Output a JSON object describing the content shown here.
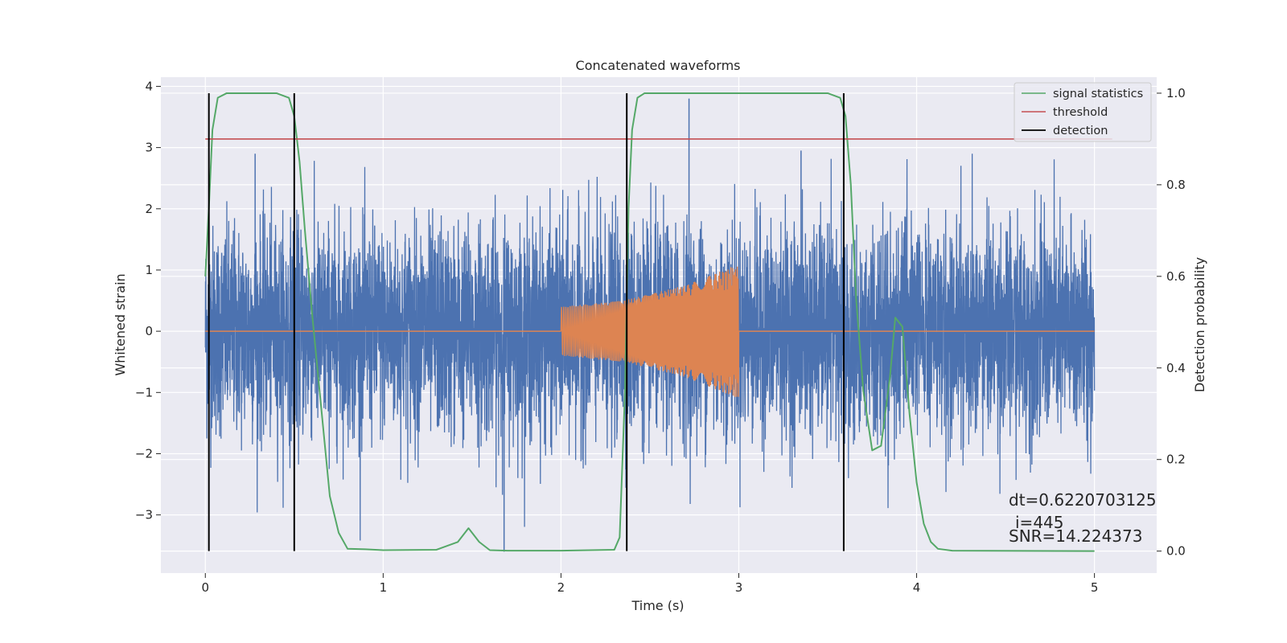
{
  "chart_data": {
    "type": "line",
    "title": "Concatenated waveforms",
    "xlabel": "Time (s)",
    "ylabel": "Whitened strain",
    "ylabel_right": "Detection probability",
    "xlim": [
      -0.25,
      5.35
    ],
    "ylim": [
      -3.95,
      4.15
    ],
    "ylim_right": [
      -0.048,
      1.035
    ],
    "x_ticks": [
      0,
      1,
      2,
      3,
      4,
      5
    ],
    "y_ticks": [
      -3,
      -2,
      -1,
      0,
      1,
      2,
      3,
      4
    ],
    "y_ticks_right": [
      0.0,
      0.2,
      0.4,
      0.6,
      0.8,
      1.0
    ],
    "x_tick_labels": [
      "0",
      "1",
      "2",
      "3",
      "4",
      "5"
    ],
    "y_tick_labels": [
      "−3",
      "−2",
      "−1",
      "0",
      "1",
      "2",
      "3",
      "4"
    ],
    "y_tick_labels_right": [
      "0.0",
      "0.2",
      "0.4",
      "0.6",
      "0.8",
      "1.0"
    ],
    "grid": true,
    "legend_position": "top-right",
    "colors": {
      "plot_background": "#eaeaf2",
      "grid": "#ffffff",
      "strain": "#4c72b0",
      "injection": "#dd8452",
      "signal_statistics": "#55a868",
      "threshold": "#c44e52",
      "detection": "#000000"
    },
    "series": [
      {
        "name": "",
        "kind": "noise",
        "axis": "left",
        "x_range": [
          0,
          5
        ],
        "envelope_upper": 2.9,
        "envelope_lower": -3.5,
        "peak": 3.8,
        "trough": -3.6,
        "color": "#4c72b0"
      },
      {
        "name": "",
        "kind": "chirp",
        "axis": "left",
        "x": [
          0,
          2,
          2.35,
          2.7,
          3,
          3.001,
          5
        ],
        "amplitude": [
          0,
          0.4,
          0.5,
          0.75,
          1.1,
          0,
          0
        ],
        "color": "#dd8452"
      },
      {
        "name": "signal statistics",
        "axis": "right",
        "color": "#55a868",
        "x": [
          0,
          0.02,
          0.04,
          0.07,
          0.12,
          0.2,
          0.4,
          0.47,
          0.5,
          0.53,
          0.56,
          0.6,
          0.65,
          0.7,
          0.75,
          0.8,
          0.9,
          1.0,
          1.3,
          1.42,
          1.48,
          1.54,
          1.6,
          1.7,
          2.0,
          2.3,
          2.33,
          2.36,
          2.38,
          2.4,
          2.43,
          2.47,
          2.55,
          3.0,
          3.5,
          3.57,
          3.6,
          3.63,
          3.66,
          3.7,
          3.75,
          3.8,
          3.85,
          3.88,
          3.92,
          3.96,
          4.0,
          4.04,
          4.08,
          4.12,
          4.2,
          5.0
        ],
        "y": [
          0.6,
          0.75,
          0.92,
          0.99,
          1.0,
          1.0,
          1.0,
          0.99,
          0.95,
          0.85,
          0.7,
          0.52,
          0.32,
          0.12,
          0.04,
          0.005,
          0.004,
          0.002,
          0.003,
          0.02,
          0.05,
          0.02,
          0.002,
          0.001,
          0.001,
          0.003,
          0.03,
          0.35,
          0.75,
          0.92,
          0.99,
          1.0,
          1.0,
          1.0,
          1.0,
          0.99,
          0.95,
          0.8,
          0.55,
          0.35,
          0.22,
          0.23,
          0.38,
          0.51,
          0.49,
          0.3,
          0.15,
          0.06,
          0.02,
          0.005,
          0.001,
          0.0
        ]
      },
      {
        "name": "threshold",
        "axis": "right",
        "color": "#c44e52",
        "x": [
          0,
          5.1
        ],
        "y": [
          0.9,
          0.9
        ]
      },
      {
        "name": "detection",
        "axis": "right",
        "color": "#000000",
        "type": "vlines",
        "x": [
          0.02,
          0.5,
          2.37,
          3.59
        ],
        "ymin": 0.0,
        "ymax": 1.0
      }
    ],
    "annotations": {
      "dt": "dt=0.6220703125",
      "i": "i=445",
      "snr": "SNR=14.224373"
    }
  }
}
